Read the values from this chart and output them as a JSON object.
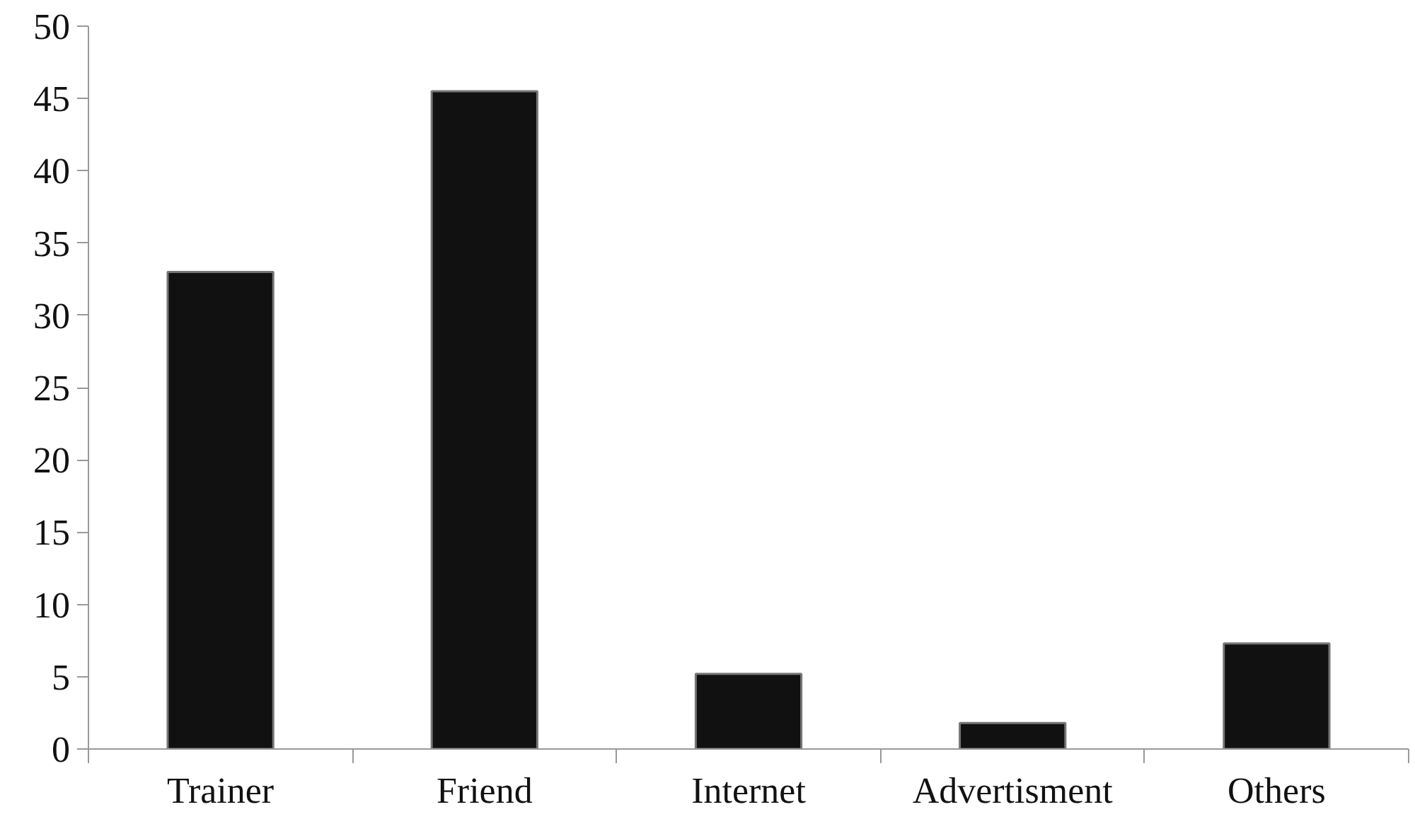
{
  "chart_data": {
    "type": "bar",
    "categories": [
      "Trainer",
      "Friend",
      "Internet",
      "Advertisment",
      "Others"
    ],
    "values": [
      33.0,
      45.5,
      5.2,
      1.8,
      7.3
    ],
    "color": "#111111",
    "ylim": [
      0,
      50
    ],
    "yticks": [
      0,
      5,
      10,
      15,
      20,
      25,
      30,
      35,
      40,
      45,
      50
    ],
    "grid": false
  }
}
